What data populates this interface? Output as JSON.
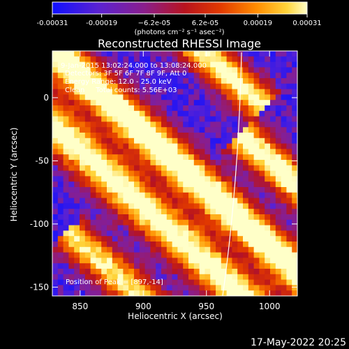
{
  "chart_data": {
    "type": "heatmap",
    "title": "Reconstructed RHESSI Image",
    "xlabel": "Heliocentric X (arcsec)",
    "ylabel": "Heliocentric Y (arcsec)",
    "xlim": [
      828,
      1022
    ],
    "ylim": [
      -157,
      37
    ],
    "x_ticks": [
      "850",
      "900",
      "950",
      "1000"
    ],
    "x_tick_values": [
      850,
      900,
      950,
      1000
    ],
    "y_ticks": [
      "0",
      "-50",
      "-100",
      "-150"
    ],
    "y_tick_values": [
      0,
      -50,
      -100,
      -150
    ],
    "colorbar": {
      "min": -0.00031,
      "max": 0.00031,
      "ticks": [
        "-0.00031",
        "-0.00019",
        "−6.2e-05",
        "6.2e-05",
        "0.00019",
        "0.00031"
      ],
      "tick_values": [
        -0.00031,
        -0.00019,
        -6.2e-05,
        6.2e-05,
        0.00019,
        0.00031
      ],
      "unit_label": "(photons cm⁻² s⁻¹ asec⁻²)",
      "colors": [
        "#1010ff",
        "#5a22d2",
        "#8a1e8c",
        "#b8131e",
        "#e23a00",
        "#ff8c00",
        "#ffd43a",
        "#ffffc8"
      ]
    },
    "peak": [
      897,
      -14
    ],
    "annotations": {
      "time": "9-Jan-2015 13:02:24.000 to 13:08:24.000",
      "detectors": "Detectors: 3F 5F 6F 7F 8F 9F, Att 0",
      "energy": "Energy Range: 12.0 - 25.0 keV",
      "method": "Clean     Total counts: 5.56E+03",
      "peak_text": "Position of Peak = [897,-14]"
    }
  },
  "footer": {
    "date": "17-May-2022 20:25"
  }
}
